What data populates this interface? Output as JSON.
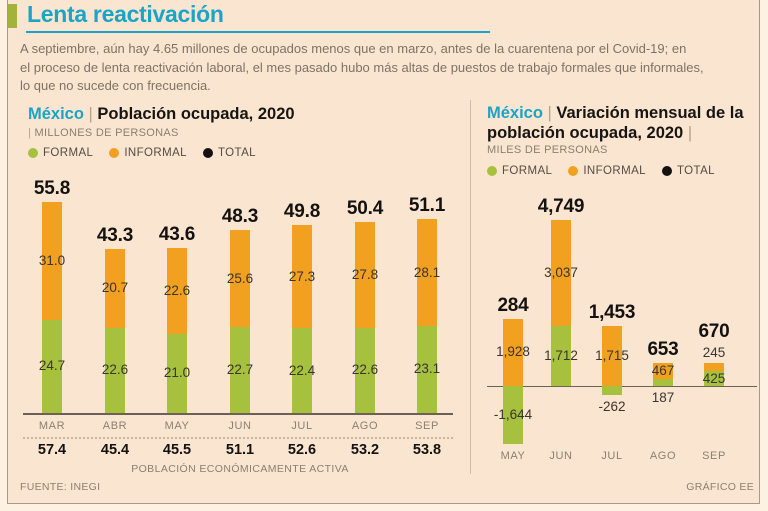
{
  "header": {
    "title": "Lenta reactivación",
    "intro_lines": [
      "A septiembre, aún hay 4.65 millones de ocupados menos que en marzo, antes de la cuarentena por el Covid-19; en",
      "el proceso de lenta reactivación laboral, el mes pasado hubo más altas de puestos de trabajo formales que informales,",
      "lo que no sucede con frecuencia."
    ]
  },
  "footer": {
    "source": "FUENTE: INEGI",
    "credit": "GRÁFICO EE"
  },
  "colors": {
    "accent_teal": "#1ba4c7",
    "kicker_green": "#a2b33b",
    "formal": "#a5c13e",
    "informal": "#f2a01f",
    "total": "#141210"
  },
  "chart_data": [
    {
      "type": "bar",
      "stacked": true,
      "title_prefix": "México",
      "title": "Población ocupada, 2020",
      "unit_label": "MILLONES DE PERSONAS",
      "unit_pipe": "|",
      "legend": [
        "FORMAL",
        "INFORMAL",
        "TOTAL"
      ],
      "categories": [
        "MAR",
        "ABR",
        "MAY",
        "JUN",
        "JUL",
        "AGO",
        "SEP"
      ],
      "series": [
        {
          "name": "FORMAL",
          "values": [
            24.7,
            22.6,
            21.0,
            22.7,
            22.4,
            22.6,
            23.1
          ]
        },
        {
          "name": "INFORMAL",
          "values": [
            31.0,
            20.7,
            22.6,
            25.6,
            27.3,
            27.8,
            28.1
          ]
        }
      ],
      "totals": [
        55.8,
        43.3,
        43.6,
        48.3,
        49.8,
        50.4,
        51.1
      ],
      "footer_values": [
        57.4,
        45.4,
        45.5,
        51.1,
        52.6,
        53.2,
        53.8
      ],
      "footer_label": "POBLACIÓN ECONÓMICAMENTE ACTIVA",
      "value_format": "fixed1",
      "ylim": [
        0,
        60
      ],
      "grid": false,
      "legend_position": "top"
    },
    {
      "type": "bar",
      "stacked": true,
      "title_prefix": "México",
      "title": "Variación mensual de la población ocupada, 2020",
      "unit_label": "MILES DE PERSONAS",
      "legend": [
        "FORMAL",
        "INFORMAL",
        "TOTAL"
      ],
      "categories": [
        "MAY",
        "JUN",
        "JUL",
        "AGO",
        "SEP"
      ],
      "series": [
        {
          "name": "FORMAL",
          "values": [
            -1644,
            1712,
            -262,
            187,
            425
          ]
        },
        {
          "name": "INFORMAL",
          "values": [
            1928,
            3037,
            1715,
            467,
            245
          ]
        }
      ],
      "totals": [
        284,
        4749,
        1453,
        653,
        670
      ],
      "value_format": "thousands",
      "ylim": [
        -2000,
        5000
      ],
      "grid": false,
      "legend_position": "top",
      "label_hints": {
        "formal": [
          "in",
          "in",
          "below",
          "below",
          "in"
        ],
        "informal": [
          "in",
          "in",
          "in",
          "in",
          "above"
        ],
        "total": [
          "above",
          "above",
          "above",
          "above",
          "above2"
        ]
      }
    }
  ]
}
